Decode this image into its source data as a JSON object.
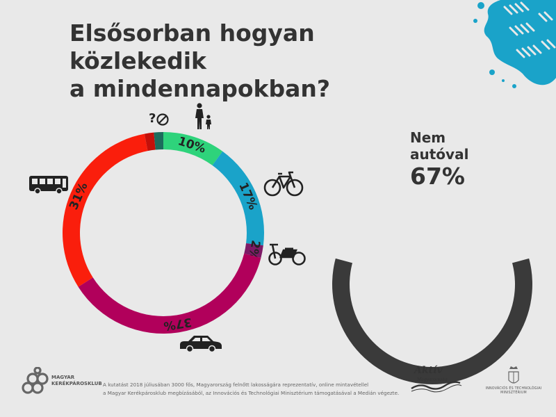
{
  "title_lines": [
    "Elsősorban hogyan közlekedik",
    "a mindennapokban?"
  ],
  "chart_data": [
    {
      "type": "pie",
      "subtype": "donut",
      "categories": [
        "gyalog",
        "kerékpár",
        "motor/robogó",
        "autó",
        "tömegközlekedés",
        "egyéb",
        "nem tudja"
      ],
      "values": [
        10,
        17,
        2,
        37,
        31,
        1.5,
        1.5
      ],
      "data_labels": [
        "10%",
        "17%",
        "2%",
        "37%",
        "31%",
        "",
        ""
      ],
      "colors": [
        "#2ed37b",
        "#1aa3c9",
        "#7d1a66",
        "#b1005b",
        "#fa1e0c",
        "#c4100a",
        "#1c6c5c"
      ],
      "icons": [
        "pedestrian-icon",
        "bicycle-icon",
        "moped-icon",
        "car-icon",
        "bus-icon",
        "other-icon",
        "question-mark-icon"
      ]
    },
    {
      "type": "pie",
      "subtype": "half-donut",
      "label": "Nem autóval",
      "value": 67,
      "display": "67%",
      "color": "#3a3a3a"
    }
  ],
  "summary": {
    "label_line1": "Nem",
    "label_line2": "autóval",
    "value": "67%"
  },
  "footer": {
    "brand_line1": "MAGYAR",
    "brand_line2": "KERÉKPÁROSKLUB",
    "note_line1": "A kutatást 2018 júliusában 3000 fős, Magyarország felnőtt lakosságára reprezentatív, online mintavétellel",
    "note_line2": "a Magyar Kerékpárosklub megbízásából, az Innovációs és Technológiai Minisztérium támogatásával a Medián végezte.",
    "aktiv_line1": "Aktív",
    "aktiv_line2": "Magyarország",
    "ministry_line1": "INNOVÁCIÓS ÉS TECHNOLÓGIAI",
    "ministry_line2": "MINISZTÉRIUM"
  },
  "colors": {
    "background": "#e9e9e9",
    "splash": "#1aa3c9",
    "text": "#333333"
  }
}
